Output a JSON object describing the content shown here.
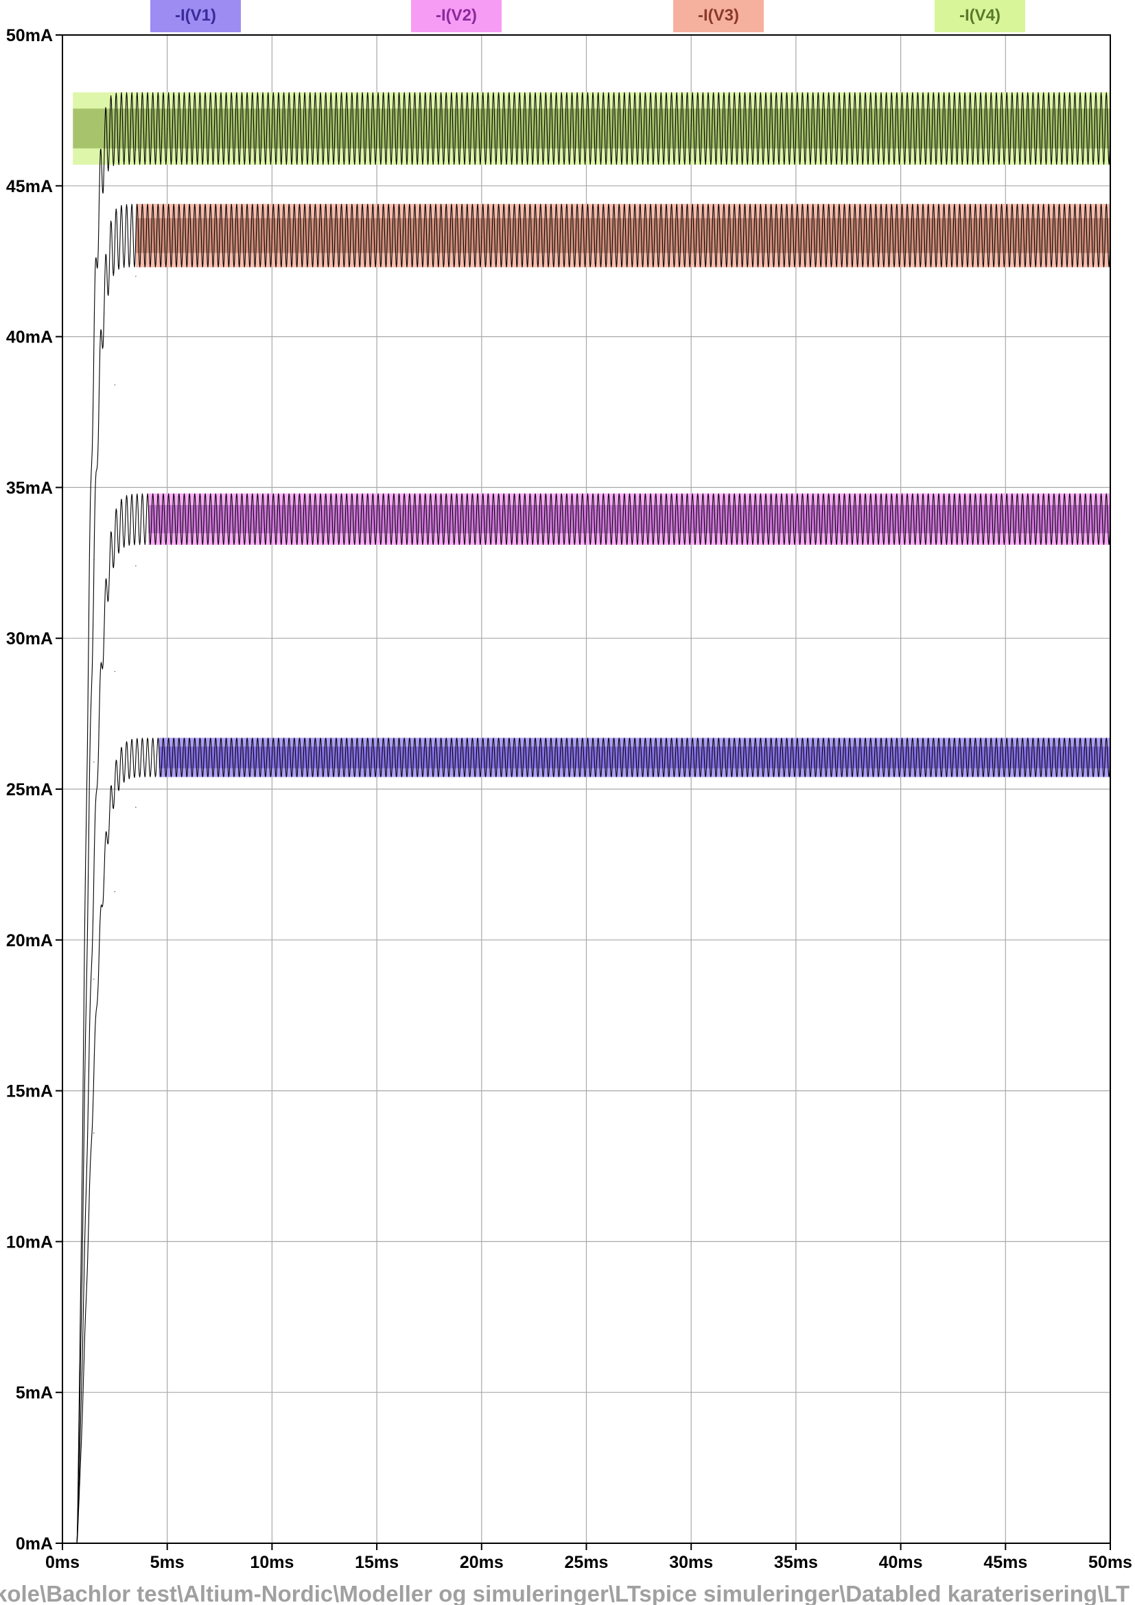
{
  "chart_data": {
    "type": "line",
    "x_unit": "ms",
    "y_unit": "mA",
    "xlim": [
      0,
      50
    ],
    "ylim": [
      0,
      50
    ],
    "x_ticks": [
      "0ms",
      "5ms",
      "10ms",
      "15ms",
      "20ms",
      "25ms",
      "30ms",
      "35ms",
      "40ms",
      "45ms",
      "50ms"
    ],
    "y_ticks": [
      "0mA",
      "5mA",
      "10mA",
      "15mA",
      "20mA",
      "25mA",
      "30mA",
      "35mA",
      "40mA",
      "45mA",
      "50mA"
    ],
    "grid": true,
    "legend_position": "top",
    "series": [
      {
        "name": "-I(V1)",
        "color": "#6a4bd8",
        "legend_bg": "#9d8cf2",
        "legend_fg": "#3a2a9a",
        "start_ms": 0.7,
        "tau_ms": 1.1,
        "band_min": 25.4,
        "band_max": 26.7,
        "band_start_ms": 4.6,
        "x": [
          0,
          0.7,
          1.5,
          2.5,
          3.5,
          5,
          10,
          20,
          30,
          40,
          50
        ],
        "y": [
          0,
          0,
          13.6,
          21.6,
          24.4,
          25.8,
          26.0,
          26.0,
          26.0,
          26.0,
          26.0
        ]
      },
      {
        "name": "-I(V2)",
        "color": "#b04ec6",
        "legend_bg": "#f79cf5",
        "legend_fg": "#8a2a9a",
        "start_ms": 0.7,
        "tau_ms": 1.0,
        "band_min": 33.1,
        "band_max": 34.8,
        "band_start_ms": 4.1,
        "x": [
          0,
          0.7,
          1.5,
          2.5,
          3.5,
          5,
          10,
          20,
          30,
          40,
          50
        ],
        "y": [
          0,
          0,
          18.7,
          28.9,
          32.4,
          33.8,
          34.0,
          34.0,
          34.0,
          34.0,
          34.0
        ]
      },
      {
        "name": "-I(V3)",
        "color": "#b56b55",
        "legend_bg": "#f6b09e",
        "legend_fg": "#8a3a2a",
        "start_ms": 0.7,
        "tau_ms": 0.85,
        "band_min": 42.3,
        "band_max": 44.4,
        "band_start_ms": 3.5,
        "x": [
          0,
          0.7,
          1.5,
          2.5,
          3.5,
          5,
          10,
          20,
          30,
          40,
          50
        ],
        "y": [
          0,
          0,
          25.9,
          38.4,
          42.0,
          43.2,
          43.3,
          43.3,
          43.3,
          43.3,
          43.3
        ]
      },
      {
        "name": "-I(V4)",
        "color": "#7a9a3a",
        "legend_bg": "#d8f59a",
        "legend_fg": "#5a7a2a",
        "start_ms": 0.7,
        "tau_ms": 0.7,
        "band_min": 45.7,
        "band_max": 48.1,
        "band_start_ms": 0.5,
        "x": [
          0,
          0.7,
          1.5,
          2.5,
          3.5,
          5,
          10,
          20,
          30,
          40,
          50
        ],
        "y": [
          0,
          0,
          32.6,
          43.3,
          46.2,
          46.9,
          47.0,
          47.0,
          47.0,
          47.0,
          47.0
        ]
      }
    ]
  },
  "footer_path": "kole\\Bachlor test\\Altium-Nordic\\Modeller og simuleringer\\LTspice simuleringer\\Databled karaterisering\\LT"
}
